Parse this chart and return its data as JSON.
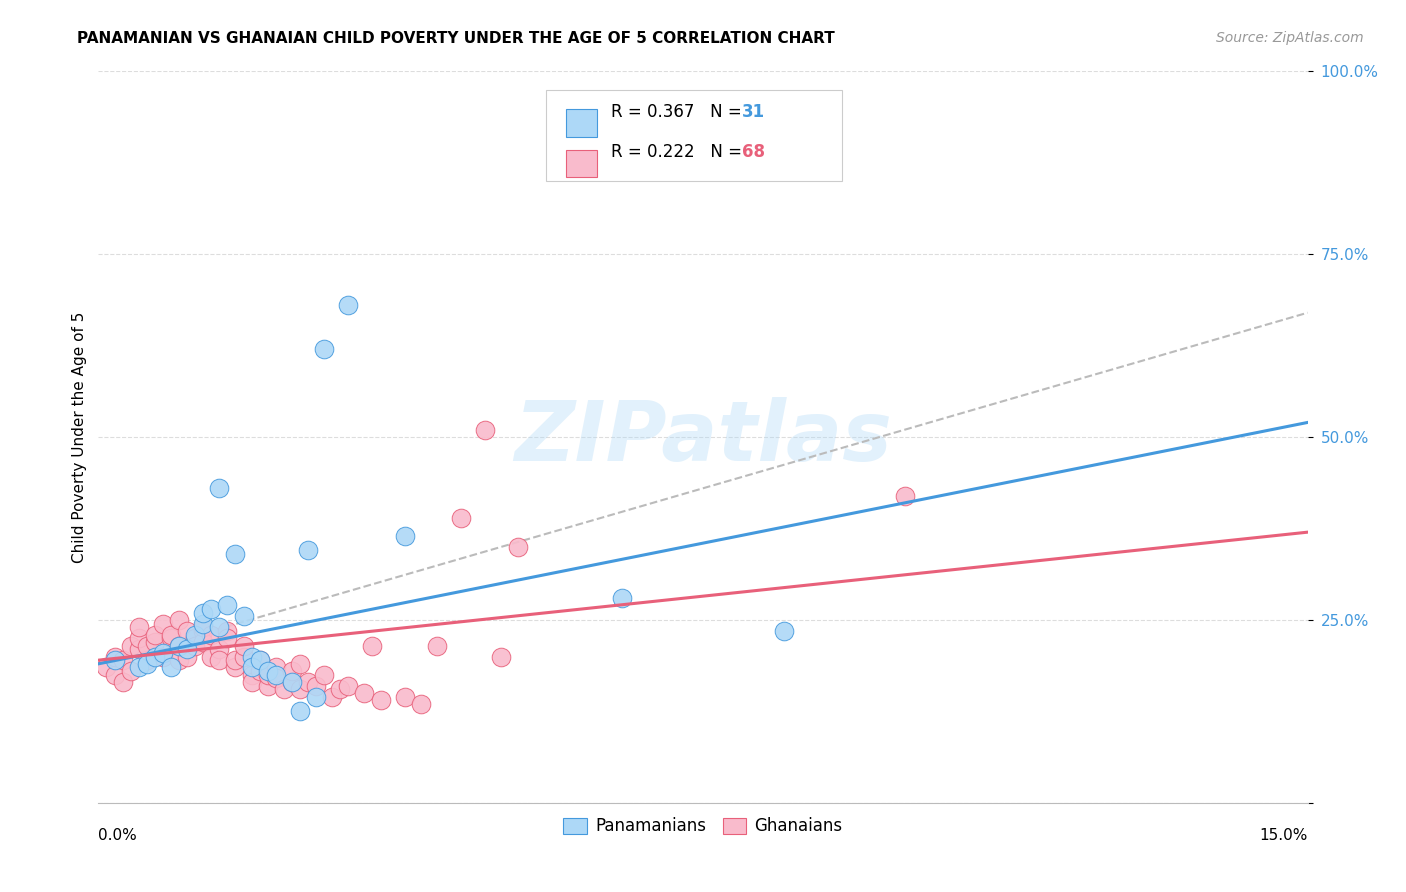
{
  "title": "PANAMANIAN VS GHANAIAN CHILD POVERTY UNDER THE AGE OF 5 CORRELATION CHART",
  "source": "Source: ZipAtlas.com",
  "ylabel": "Child Poverty Under the Age of 5",
  "xmin": 0.0,
  "xmax": 15.0,
  "ymin": 0.0,
  "ymax": 100.0,
  "yticks": [
    0.0,
    25.0,
    50.0,
    75.0,
    100.0
  ],
  "ytick_labels": [
    "",
    "25.0%",
    "50.0%",
    "75.0%",
    "100.0%"
  ],
  "blue_color": "#ADD8F7",
  "pink_color": "#F9BBCC",
  "blue_line_color": "#4499DD",
  "pink_line_color": "#E8607A",
  "blue_scatter": [
    [
      0.2,
      19.5
    ],
    [
      0.5,
      18.5
    ],
    [
      0.6,
      19.0
    ],
    [
      0.7,
      20.0
    ],
    [
      0.8,
      20.5
    ],
    [
      0.9,
      18.5
    ],
    [
      1.0,
      21.5
    ],
    [
      1.1,
      21.0
    ],
    [
      1.2,
      23.0
    ],
    [
      1.3,
      24.5
    ],
    [
      1.3,
      26.0
    ],
    [
      1.4,
      26.5
    ],
    [
      1.5,
      24.0
    ],
    [
      1.5,
      43.0
    ],
    [
      1.6,
      27.0
    ],
    [
      1.7,
      34.0
    ],
    [
      1.8,
      25.5
    ],
    [
      1.9,
      20.0
    ],
    [
      1.9,
      18.5
    ],
    [
      2.0,
      19.5
    ],
    [
      2.1,
      18.0
    ],
    [
      2.2,
      17.5
    ],
    [
      2.4,
      16.5
    ],
    [
      2.5,
      12.5
    ],
    [
      2.6,
      34.5
    ],
    [
      2.7,
      14.5
    ],
    [
      2.8,
      62.0
    ],
    [
      3.1,
      68.0
    ],
    [
      6.5,
      28.0
    ],
    [
      8.5,
      23.5
    ],
    [
      3.8,
      36.5
    ]
  ],
  "pink_scatter": [
    [
      0.1,
      18.5
    ],
    [
      0.2,
      17.5
    ],
    [
      0.2,
      20.0
    ],
    [
      0.3,
      16.5
    ],
    [
      0.3,
      19.5
    ],
    [
      0.4,
      18.0
    ],
    [
      0.4,
      21.5
    ],
    [
      0.5,
      21.0
    ],
    [
      0.5,
      22.5
    ],
    [
      0.5,
      24.0
    ],
    [
      0.6,
      19.5
    ],
    [
      0.6,
      21.5
    ],
    [
      0.7,
      22.0
    ],
    [
      0.7,
      23.0
    ],
    [
      0.8,
      24.5
    ],
    [
      0.8,
      20.0
    ],
    [
      0.9,
      22.5
    ],
    [
      0.9,
      23.0
    ],
    [
      1.0,
      25.0
    ],
    [
      1.0,
      21.5
    ],
    [
      1.0,
      19.5
    ],
    [
      1.1,
      23.5
    ],
    [
      1.1,
      20.0
    ],
    [
      1.2,
      22.5
    ],
    [
      1.2,
      21.5
    ],
    [
      1.3,
      23.5
    ],
    [
      1.3,
      22.0
    ],
    [
      1.3,
      24.0
    ],
    [
      1.4,
      20.0
    ],
    [
      1.4,
      23.0
    ],
    [
      1.5,
      21.0
    ],
    [
      1.5,
      19.5
    ],
    [
      1.6,
      23.5
    ],
    [
      1.6,
      22.5
    ],
    [
      1.7,
      18.5
    ],
    [
      1.7,
      19.5
    ],
    [
      1.8,
      20.0
    ],
    [
      1.8,
      21.5
    ],
    [
      1.9,
      17.5
    ],
    [
      1.9,
      16.5
    ],
    [
      2.0,
      18.0
    ],
    [
      2.0,
      19.5
    ],
    [
      2.1,
      16.0
    ],
    [
      2.1,
      17.5
    ],
    [
      2.2,
      18.5
    ],
    [
      2.2,
      17.0
    ],
    [
      2.3,
      15.5
    ],
    [
      2.4,
      16.5
    ],
    [
      2.4,
      18.0
    ],
    [
      2.5,
      19.0
    ],
    [
      2.5,
      15.5
    ],
    [
      2.6,
      16.5
    ],
    [
      2.7,
      16.0
    ],
    [
      2.8,
      17.5
    ],
    [
      2.9,
      14.5
    ],
    [
      3.0,
      15.5
    ],
    [
      3.1,
      16.0
    ],
    [
      3.3,
      15.0
    ],
    [
      3.4,
      21.5
    ],
    [
      3.5,
      14.0
    ],
    [
      3.8,
      14.5
    ],
    [
      4.0,
      13.5
    ],
    [
      4.2,
      21.5
    ],
    [
      4.5,
      39.0
    ],
    [
      5.0,
      20.0
    ],
    [
      5.2,
      35.0
    ],
    [
      10.0,
      42.0
    ],
    [
      4.8,
      51.0
    ]
  ],
  "blue_line": [
    [
      0.0,
      19.0
    ],
    [
      15.0,
      52.0
    ]
  ],
  "pink_line": [
    [
      0.0,
      19.5
    ],
    [
      15.0,
      37.0
    ]
  ],
  "dash_line": [
    [
      0.0,
      19.0
    ],
    [
      15.0,
      67.0
    ]
  ],
  "watermark_text": "ZIPatlas",
  "background_color": "#FFFFFF",
  "grid_color": "#DDDDDD",
  "grid_linestyle": "--",
  "title_fontsize": 11,
  "source_fontsize": 10,
  "tick_fontsize": 11,
  "ylabel_fontsize": 11
}
